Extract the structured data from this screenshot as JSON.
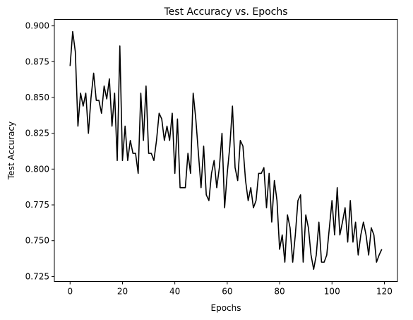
{
  "chart_data": {
    "type": "line",
    "title": "Test Accuracy vs. Epochs",
    "xlabel": "Epochs",
    "ylabel": "Test Accuracy",
    "xlim": [
      -6,
      125
    ],
    "ylim": [
      0.7215,
      0.9045
    ],
    "grid": false,
    "xticks": [
      0,
      20,
      40,
      60,
      80,
      100,
      120
    ],
    "xtick_labels": [
      "0",
      "20",
      "40",
      "60",
      "80",
      "100",
      "120"
    ],
    "yticks": [
      0.725,
      0.75,
      0.775,
      0.8,
      0.825,
      0.85,
      0.875,
      0.9
    ],
    "ytick_labels": [
      "0.725",
      "0.750",
      "0.775",
      "0.800",
      "0.825",
      "0.850",
      "0.875",
      "0.900"
    ],
    "series": [
      {
        "color": "#000000",
        "x": [
          0,
          1,
          2,
          3,
          4,
          5,
          6,
          7,
          8,
          9,
          10,
          11,
          12,
          13,
          14,
          15,
          16,
          17,
          18,
          19,
          20,
          21,
          22,
          23,
          24,
          25,
          26,
          27,
          28,
          29,
          30,
          31,
          32,
          33,
          34,
          35,
          36,
          37,
          38,
          39,
          40,
          41,
          42,
          43,
          44,
          45,
          46,
          47,
          48,
          49,
          50,
          51,
          52,
          53,
          54,
          55,
          56,
          57,
          58,
          59,
          60,
          61,
          62,
          63,
          64,
          65,
          66,
          67,
          68,
          69,
          70,
          71,
          72,
          73,
          74,
          75,
          76,
          77,
          78,
          79,
          80,
          81,
          82,
          83,
          84,
          85,
          86,
          87,
          88,
          89,
          90,
          91,
          92,
          93,
          94,
          95,
          96,
          97,
          98,
          99,
          100,
          101,
          102,
          103,
          104,
          105,
          106,
          107,
          108,
          109,
          110,
          111,
          112,
          113,
          114,
          115,
          116,
          117,
          118,
          119
        ],
        "y": [
          0.872,
          0.896,
          0.882,
          0.83,
          0.853,
          0.844,
          0.853,
          0.825,
          0.85,
          0.867,
          0.848,
          0.848,
          0.839,
          0.858,
          0.849,
          0.863,
          0.83,
          0.853,
          0.806,
          0.886,
          0.806,
          0.83,
          0.806,
          0.82,
          0.811,
          0.811,
          0.797,
          0.853,
          0.82,
          0.858,
          0.811,
          0.811,
          0.806,
          0.82,
          0.839,
          0.835,
          0.82,
          0.83,
          0.82,
          0.839,
          0.797,
          0.835,
          0.787,
          0.787,
          0.787,
          0.811,
          0.797,
          0.853,
          0.835,
          0.811,
          0.787,
          0.816,
          0.782,
          0.778,
          0.797,
          0.806,
          0.787,
          0.801,
          0.825,
          0.773,
          0.797,
          0.816,
          0.844,
          0.801,
          0.792,
          0.82,
          0.816,
          0.792,
          0.778,
          0.787,
          0.773,
          0.778,
          0.797,
          0.797,
          0.801,
          0.773,
          0.797,
          0.763,
          0.792,
          0.778,
          0.744,
          0.754,
          0.735,
          0.768,
          0.759,
          0.735,
          0.754,
          0.778,
          0.782,
          0.735,
          0.768,
          0.759,
          0.74,
          0.73,
          0.74,
          0.763,
          0.735,
          0.735,
          0.74,
          0.759,
          0.778,
          0.754,
          0.787,
          0.754,
          0.763,
          0.773,
          0.749,
          0.778,
          0.749,
          0.763,
          0.74,
          0.754,
          0.763,
          0.754,
          0.74,
          0.759,
          0.754,
          0.735,
          0.74,
          0.744
        ]
      }
    ]
  }
}
